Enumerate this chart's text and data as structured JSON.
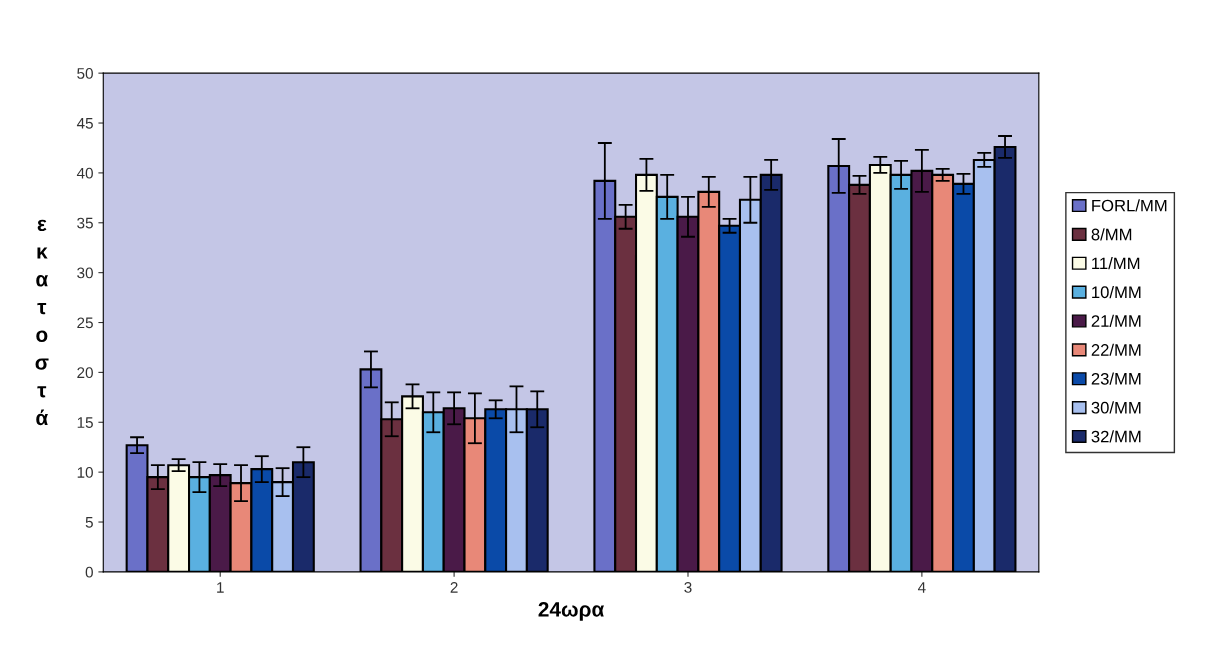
{
  "chart_data": {
    "type": "bar",
    "xlabel": "24ωρα",
    "ylabel": "εκατοστά",
    "categories": [
      "1",
      "2",
      "3",
      "4"
    ],
    "series": [
      {
        "name": "FORL/MM",
        "color": "#6a70c8",
        "values": [
          12.7,
          20.3,
          39.2,
          40.7
        ],
        "errors": [
          0.8,
          1.8,
          3.8,
          2.7
        ]
      },
      {
        "name": "8/MM",
        "color": "#6b3040",
        "values": [
          9.5,
          15.3,
          35.6,
          38.8
        ],
        "errors": [
          1.2,
          1.7,
          1.2,
          0.9
        ]
      },
      {
        "name": "11/MM",
        "color": "#fbfbe6",
        "values": [
          10.7,
          17.6,
          39.8,
          40.8
        ],
        "errors": [
          0.6,
          1.2,
          1.6,
          0.8
        ]
      },
      {
        "name": "10/MM",
        "color": "#5ab0e0",
        "values": [
          9.5,
          16.0,
          37.6,
          39.8
        ],
        "errors": [
          1.5,
          2.0,
          2.2,
          1.4
        ]
      },
      {
        "name": "21/MM",
        "color": "#4a1a48",
        "values": [
          9.7,
          16.4,
          35.6,
          40.2
        ],
        "errors": [
          1.1,
          1.6,
          2.0,
          2.1
        ]
      },
      {
        "name": "22/MM",
        "color": "#e88878",
        "values": [
          8.9,
          15.4,
          38.1,
          39.8
        ],
        "errors": [
          1.8,
          2.5,
          1.5,
          0.6
        ]
      },
      {
        "name": "23/MM",
        "color": "#0a4aa8",
        "values": [
          10.3,
          16.3,
          34.7,
          38.9
        ],
        "errors": [
          1.3,
          0.9,
          0.7,
          1.0
        ]
      },
      {
        "name": "30/MM",
        "color": "#a8c0ef",
        "values": [
          9.0,
          16.3,
          37.3,
          41.3
        ],
        "errors": [
          1.4,
          2.3,
          2.3,
          0.7
        ]
      },
      {
        "name": "32/MM",
        "color": "#1a2a6a",
        "values": [
          11.0,
          16.3,
          39.8,
          42.6
        ],
        "errors": [
          1.5,
          1.8,
          1.5,
          1.1
        ]
      }
    ],
    "ylim": [
      0,
      50
    ],
    "yticks": [
      0,
      5,
      10,
      15,
      20,
      25,
      30,
      35,
      40,
      45,
      50
    ],
    "grid": false,
    "legend": "right"
  }
}
